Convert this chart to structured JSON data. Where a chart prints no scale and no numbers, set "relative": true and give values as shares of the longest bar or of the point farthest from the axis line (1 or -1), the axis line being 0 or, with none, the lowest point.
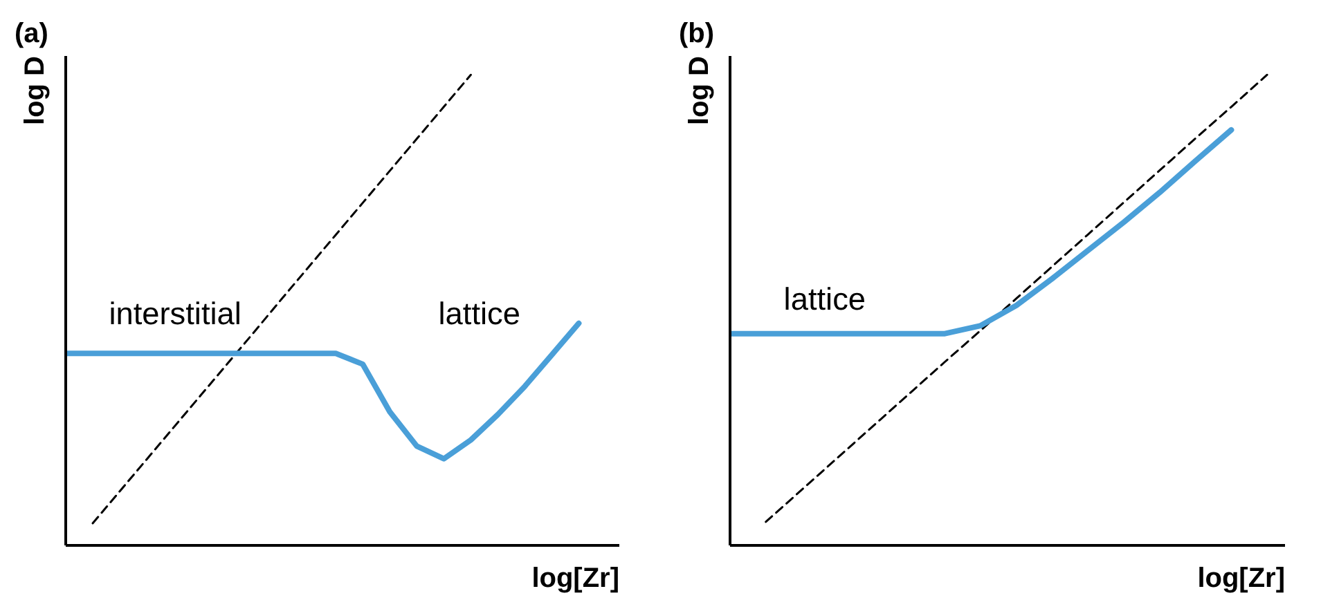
{
  "chart_data": [
    {
      "type": "line",
      "title": "(a)",
      "xlabel": "log[Zr]",
      "ylabel": "log D",
      "relative": true,
      "categories": [
        null,
        null,
        null,
        null,
        null,
        null,
        null,
        null,
        null,
        null,
        null,
        null,
        null,
        null,
        null,
        null,
        null,
        null,
        null,
        null,
        null
      ],
      "series": [
        {
          "color": "#000000",
          "line_style": "dashed",
          "values": [
            null,
            0.047,
            0.115,
            0.183,
            0.251,
            0.319,
            0.387,
            0.455,
            0.524,
            0.592,
            0.66,
            0.728,
            0.796,
            0.864,
            0.932,
            1.0,
            null,
            null,
            null,
            null,
            null
          ]
        },
        {
          "color": "#4a9fd8",
          "line_style": "solid",
          "values": [
            0.408,
            0.408,
            0.408,
            0.408,
            0.408,
            0.408,
            0.408,
            0.408,
            0.408,
            0.408,
            0.408,
            0.385,
            0.284,
            0.211,
            0.184,
            0.224,
            0.278,
            0.338,
            0.405,
            0.472,
            null
          ]
        }
      ],
      "annotations": [
        "interstitial",
        "lattice"
      ]
    },
    {
      "type": "line",
      "title": "(b)",
      "xlabel": "log[Zr]",
      "ylabel": "log D",
      "relative": true,
      "categories": [
        null,
        null,
        null,
        null,
        null,
        null,
        null,
        null,
        null,
        null,
        null,
        null,
        null,
        null,
        null,
        null
      ],
      "series": [
        {
          "color": "#000000",
          "line_style": "dashed",
          "values": [
            null,
            0.05,
            0.118,
            0.186,
            0.254,
            0.322,
            0.39,
            0.457,
            0.525,
            0.593,
            0.661,
            0.729,
            0.797,
            0.865,
            0.932,
            1.0
          ]
        },
        {
          "color": "#4a9fd8",
          "line_style": "solid",
          "values": [
            0.45,
            0.45,
            0.45,
            0.45,
            0.45,
            0.45,
            0.45,
            0.467,
            0.51,
            0.567,
            0.627,
            0.687,
            0.75,
            0.817,
            0.883,
            null
          ]
        }
      ],
      "annotations": [
        "lattice"
      ]
    }
  ]
}
